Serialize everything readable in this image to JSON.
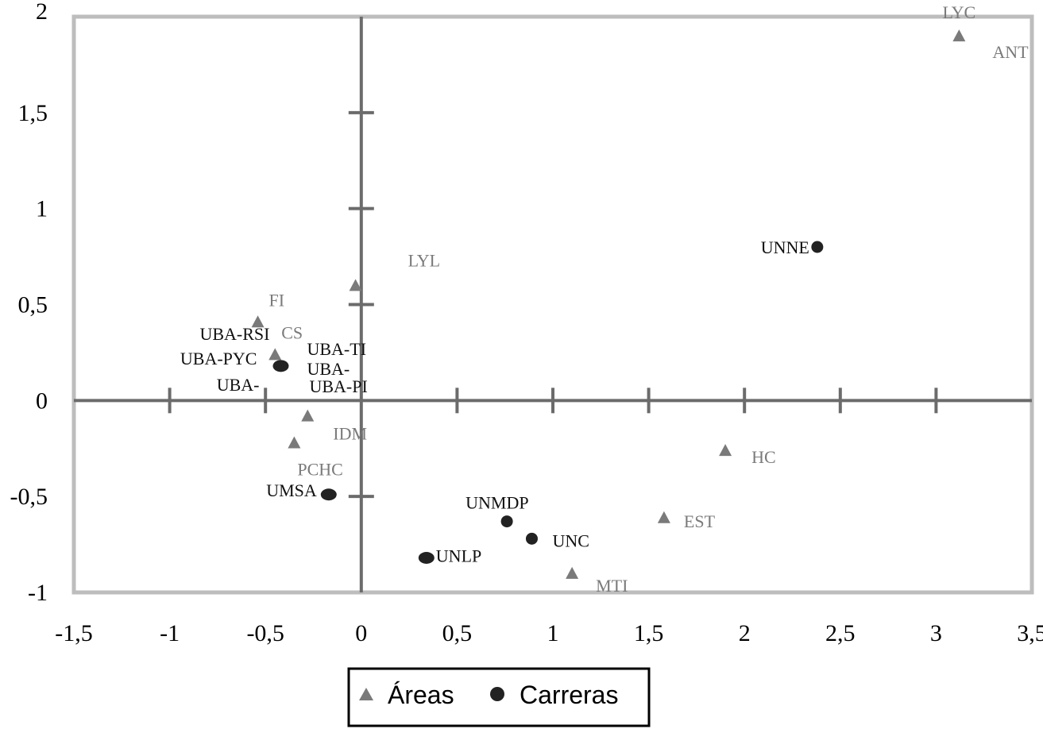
{
  "chart_data": {
    "type": "scatter",
    "xlim": [
      -1.5,
      3.5
    ],
    "ylim": [
      -1,
      2
    ],
    "x_ticks": [
      "-1,5",
      "-1",
      "-0,5",
      "0",
      "0,5",
      "1",
      "1,5",
      "2",
      "2,5",
      "3",
      "3,5"
    ],
    "y_ticks": [
      "-1",
      "-0,5",
      "0",
      "0,5",
      "1",
      "1,5",
      "2"
    ],
    "grid": false,
    "legend_position": "bottom",
    "legend": [
      {
        "name": "Áreas",
        "marker": "triangle",
        "color": "#7a7a7a"
      },
      {
        "name": "Carreras",
        "marker": "circle",
        "color": "#222222"
      }
    ],
    "series": [
      {
        "name": "Áreas",
        "marker": "triangle",
        "color": "#7a7a7a",
        "points": [
          {
            "label": "LYC",
            "x": 3.12,
            "y": 1.9
          },
          {
            "label": "ANT",
            "x": 3.12,
            "y": 1.9
          },
          {
            "label": "LYL",
            "x": -0.03,
            "y": 0.6
          },
          {
            "label": "FI",
            "x": -0.54,
            "y": 0.41
          },
          {
            "label": "CS",
            "x": -0.45,
            "y": 0.24
          },
          {
            "label": "IDM",
            "x": -0.28,
            "y": -0.08
          },
          {
            "label": "PCHC",
            "x": -0.35,
            "y": -0.22
          },
          {
            "label": "HC",
            "x": 1.9,
            "y": -0.26
          },
          {
            "label": "EST",
            "x": 1.58,
            "y": -0.61
          },
          {
            "label": "MTI",
            "x": 1.1,
            "y": -0.9
          }
        ]
      },
      {
        "name": "Carreras",
        "marker": "circle",
        "color": "#222222",
        "points": [
          {
            "label": "UNNE",
            "x": 2.38,
            "y": 0.8
          },
          {
            "label": "UBA-RSI",
            "x": -0.42,
            "y": 0.18
          },
          {
            "label": "UBA-PYC",
            "x": -0.42,
            "y": 0.18
          },
          {
            "label": "UBA-",
            "x": -0.42,
            "y": 0.18
          },
          {
            "label": "UBA-TI",
            "x": -0.42,
            "y": 0.18
          },
          {
            "label": "UBA-",
            "x": -0.42,
            "y": 0.18
          },
          {
            "label": "UBA-PI",
            "x": -0.42,
            "y": 0.18
          },
          {
            "label": "UMSA",
            "x": -0.17,
            "y": -0.49
          },
          {
            "label": "UNMDP",
            "x": 0.76,
            "y": -0.63
          },
          {
            "label": "UNC",
            "x": 0.89,
            "y": -0.72
          },
          {
            "label": "UNLP",
            "x": 0.34,
            "y": -0.82
          }
        ]
      }
    ]
  }
}
